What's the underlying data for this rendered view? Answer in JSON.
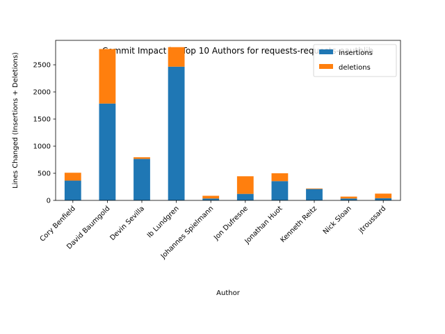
{
  "chart_data": {
    "type": "bar",
    "stacked": true,
    "title": "Commit Impact by Top 10 Authors for requests-requests-oauthlib",
    "xlabel": "Author",
    "ylabel": "Lines Changed (Insertions + Deletions)",
    "categories": [
      "Cory Benfield",
      "David Baumgold",
      "Devin Sevilla",
      "Ib Lundgren",
      "Johannes Spielmann",
      "Jon Dufresne",
      "Jonathan Huot",
      "Kenneth Reitz",
      "Nick Sloan",
      "jtroussard"
    ],
    "series": [
      {
        "name": "insertions",
        "color": "#1f77b4",
        "values": [
          365,
          1785,
          765,
          2465,
          35,
          120,
          355,
          210,
          35,
          40
        ]
      },
      {
        "name": "deletions",
        "color": "#ff7f0e",
        "values": [
          145,
          1005,
          30,
          360,
          50,
          325,
          145,
          10,
          35,
          85
        ]
      }
    ],
    "ylim": [
      0,
      2950
    ],
    "yticks": [
      0,
      500,
      1000,
      1500,
      2000,
      2500
    ],
    "grid": false,
    "legend": "top-right"
  }
}
